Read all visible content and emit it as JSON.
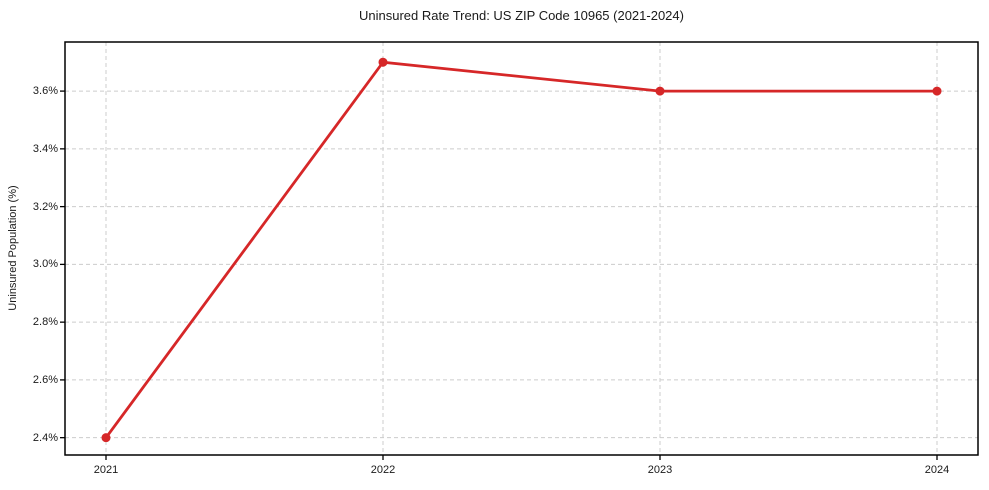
{
  "chart_data": {
    "type": "line",
    "title": "Uninsured Rate Trend: US ZIP Code 10965 (2021-2024)",
    "xlabel": "",
    "ylabel": "Uninsured Population (%)",
    "x": [
      "2021",
      "2022",
      "2023",
      "2024"
    ],
    "series": [
      {
        "name": "Uninsured rate",
        "values": [
          2.4,
          3.7,
          3.6,
          3.6
        ]
      }
    ],
    "y_tick_values": [
      2.4,
      2.6,
      2.8,
      3.0,
      3.2,
      3.4,
      3.6
    ],
    "y_tick_labels": [
      "2.4%",
      "2.6%",
      "2.8%",
      "3.0%",
      "3.2%",
      "3.4%",
      "3.6%"
    ],
    "ylim": [
      2.34,
      3.77
    ],
    "grid": "dashed-both",
    "legend": "none",
    "marker": "circle",
    "colors": {
      "line": "#d62728",
      "marker": "#d62728",
      "grid": "#cccccc",
      "spine": "#000000",
      "text": "#1a1a1a",
      "background": "#ffffff"
    }
  }
}
